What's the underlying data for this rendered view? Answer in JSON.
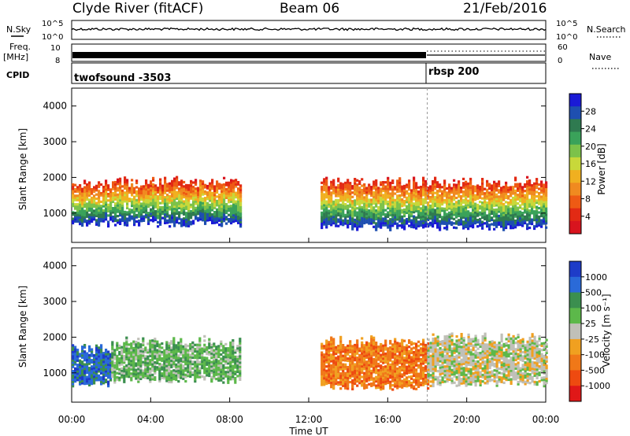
{
  "header": {
    "station": "Clyde River (fitACF)",
    "beam": "Beam 06",
    "date": "21/Feb/2016"
  },
  "status_panels": {
    "nsky_label": "N.Sky",
    "nsky_ticks": [
      "10^5",
      "10^0"
    ],
    "nsearch_label": "N.Search",
    "nsearch_ticks": [
      "10^5",
      "10^0"
    ],
    "freq_label": "Freq.",
    "freq_unit": "[MHz]",
    "freq_ticks": [
      "10",
      "8"
    ],
    "nave_label": "Nave",
    "nave_ticks": [
      "60",
      "0"
    ],
    "cpid_label": "CPID",
    "cpid_segments": [
      {
        "name": "twofsound -3503",
        "start_hour": 0
      },
      {
        "name": "rbsp 200",
        "start_hour": 18
      }
    ]
  },
  "chart_data": [
    {
      "type": "heatmap",
      "panel": "power",
      "ylabel": "Slant Range [km]",
      "xlim": [
        0,
        24
      ],
      "ylim": [
        180,
        4500
      ],
      "yticks": [
        "1000",
        "2000",
        "3000",
        "4000"
      ],
      "colorbar_label": "Power [dB]",
      "colorbar_ticks": [
        "28",
        "24",
        "20",
        "16",
        "12",
        "8",
        "4"
      ],
      "colorbar_colors": [
        "#1a1ad6",
        "#1e4fb0",
        "#2f7a50",
        "#3aa25a",
        "#7cc24a",
        "#c8d83a",
        "#f0b020",
        "#f08a20",
        "#ee5a14",
        "#e22a14",
        "#d8141e"
      ],
      "echo_regions": [
        {
          "start_hour": 0.0,
          "end_hour": 8.5,
          "range_min": 700,
          "range_max": 2000,
          "mean_power": 20
        },
        {
          "start_hour": 12.6,
          "end_hour": 24.0,
          "range_min": 600,
          "range_max": 2000,
          "mean_power": 18
        }
      ]
    },
    {
      "type": "heatmap",
      "panel": "velocity",
      "ylabel": "Slant Range [km]",
      "xlabel": "Time UT",
      "xlim": [
        0,
        24
      ],
      "ylim": [
        180,
        4500
      ],
      "xticks": [
        "00:00",
        "04:00",
        "08:00",
        "12:00",
        "16:00",
        "20:00",
        "00:00"
      ],
      "yticks": [
        "1000",
        "2000",
        "3000",
        "4000"
      ],
      "colorbar_label": "Velocity [m s⁻¹]",
      "colorbar_ticks": [
        "1000",
        "500",
        "100",
        "25",
        "-25",
        "-100",
        "-500",
        "-1000"
      ],
      "colorbar_colors": [
        "#1e3cc8",
        "#2a6ad8",
        "#3b8f4f",
        "#5cb84a",
        "#c0c0b8",
        "#f0a020",
        "#f07818",
        "#ee4a10",
        "#e01818"
      ],
      "echo_regions": [
        {
          "start_hour": 0.0,
          "end_hour": 2.0,
          "range_min": 700,
          "range_max": 1800,
          "mean_velocity": 500
        },
        {
          "start_hour": 2.0,
          "end_hour": 8.5,
          "range_min": 800,
          "range_max": 2000,
          "mean_velocity": 25
        },
        {
          "start_hour": 12.6,
          "end_hour": 18.0,
          "range_min": 600,
          "range_max": 2000,
          "mean_velocity": -300
        },
        {
          "start_hour": 18.0,
          "end_hour": 24.0,
          "range_min": 700,
          "range_max": 2100,
          "mean_velocity": 0
        }
      ]
    }
  ]
}
